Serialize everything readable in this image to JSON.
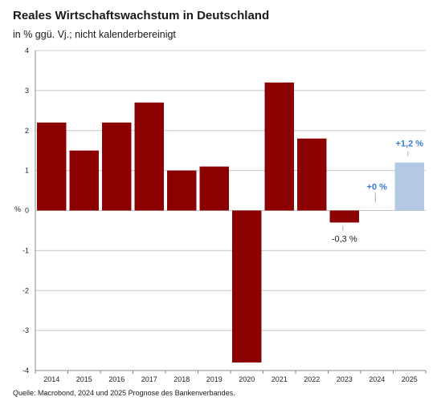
{
  "header": {
    "title": "Reales Wirtschaftswachstum in Deutschland",
    "subtitle": "in % ggü. Vj.; nicht kalenderbereinigt"
  },
  "footer": {
    "source": "Quelle: Macrobond, 2024 und 2025 Prognose des Bankenverbandes."
  },
  "colors": {
    "actual": "#8b0000",
    "forecast": "#b3c9e3",
    "forecast_label": "#3a7bd5",
    "grid": "#c8c8c8"
  },
  "chart_data": {
    "type": "bar",
    "title": "Reales Wirtschaftswachstum in Deutschland",
    "subtitle": "in % ggü. Vj.; nicht kalenderbereinigt",
    "xlabel": "",
    "ylabel": "%",
    "ylim": [
      -4,
      4
    ],
    "yticks": [
      4,
      3,
      2,
      1,
      0,
      -1,
      -2,
      -3,
      -4
    ],
    "grid": true,
    "categories": [
      "2014",
      "2015",
      "2016",
      "2017",
      "2018",
      "2019",
      "2020",
      "2021",
      "2022",
      "2023",
      "2024",
      "2025"
    ],
    "values": [
      2.2,
      1.5,
      2.2,
      2.7,
      1.0,
      1.1,
      -3.8,
      3.2,
      1.8,
      -0.3,
      0.0,
      1.2
    ],
    "forecast": [
      false,
      false,
      false,
      false,
      false,
      false,
      false,
      false,
      false,
      false,
      true,
      true
    ],
    "annotations": [
      {
        "category": "2023",
        "text": "-0,3 %",
        "style": "actual"
      },
      {
        "category": "2024",
        "text": "+0 %",
        "style": "forecast"
      },
      {
        "category": "2025",
        "text": "+1,2 %",
        "style": "forecast"
      }
    ]
  }
}
